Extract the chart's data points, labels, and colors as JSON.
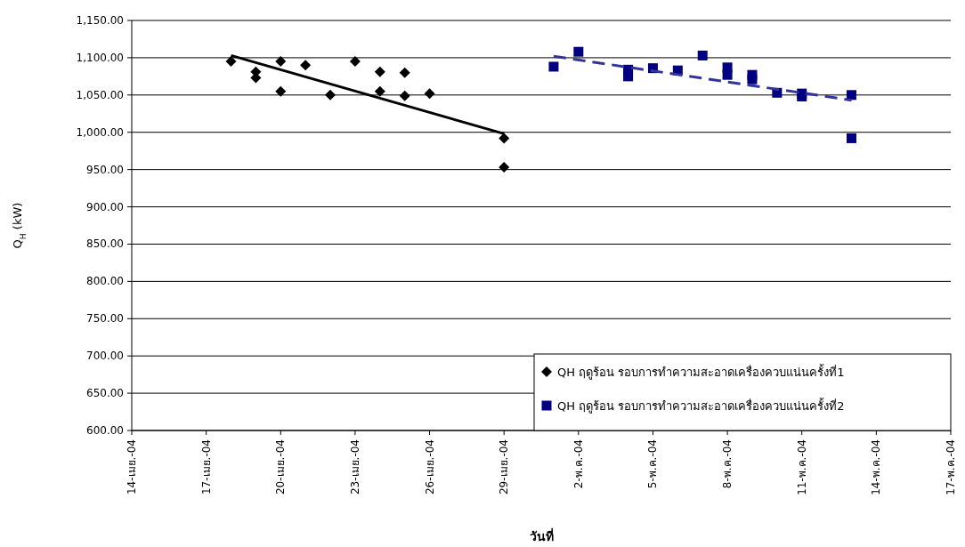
{
  "chart_data": {
    "type": "scatter",
    "xlabel": "วันที่",
    "ylabel": "Q$_{H}$ (kW)",
    "xlim": [
      "--04-14",
      "--05-17"
    ],
    "xticks": [
      {
        "value": "--04-14",
        "label": "14-เมย.-04"
      },
      {
        "value": "--04-17",
        "label": "17-เมย.-04"
      },
      {
        "value": "--04-20",
        "label": "20-เมย.-04"
      },
      {
        "value": "--04-23",
        "label": "23-เมย.-04"
      },
      {
        "value": "--04-26",
        "label": "26-เมย.-04"
      },
      {
        "value": "--04-29",
        "label": "29-เมย.-04"
      },
      {
        "value": "--05-02",
        "label": "2-พ.ค.-04"
      },
      {
        "value": "--05-05",
        "label": "5-พ.ค.-04"
      },
      {
        "value": "--05-08",
        "label": "8-พ.ค.-04"
      },
      {
        "value": "--05-11",
        "label": "11-พ.ค.-04"
      },
      {
        "value": "--05-14",
        "label": "14-พ.ค.-04"
      },
      {
        "value": "--05-17",
        "label": "17-พ.ค.-04"
      }
    ],
    "ylim": [
      600,
      1150
    ],
    "yticks": [
      {
        "value": 600,
        "label": "600.00"
      },
      {
        "value": 650,
        "label": "650.00"
      },
      {
        "value": 700,
        "label": "700.00"
      },
      {
        "value": 750,
        "label": "750.00"
      },
      {
        "value": 800,
        "label": "800.00"
      },
      {
        "value": 850,
        "label": "850.00"
      },
      {
        "value": 900,
        "label": "900.00"
      },
      {
        "value": 950,
        "label": "950.00"
      },
      {
        "value": 1000,
        "label": "1,000.00"
      },
      {
        "value": 1050,
        "label": "1,050.00"
      },
      {
        "value": 1100,
        "label": "1,100.00"
      },
      {
        "value": 1150,
        "label": "1,150.00"
      }
    ],
    "grid": "y",
    "legend": "bottom right",
    "series": [
      {
        "name": "QH ฤดูร้อน รอบการทำความสะอาดเครื่องควบแน่นครั้งที่1",
        "color": "#000000",
        "marker": "diamond",
        "x": [
          "--04-18",
          "--04-19",
          "--04-19",
          "--04-20",
          "--04-20",
          "--04-21",
          "--04-22",
          "--04-23",
          "--04-24",
          "--04-24",
          "--04-25",
          "--04-25",
          "--04-26",
          "--04-29",
          "--04-29"
        ],
        "values": [
          1095,
          1081,
          1073,
          1095,
          1055,
          1090,
          1050,
          1095,
          1081,
          1055,
          1080,
          1049,
          1052,
          992,
          953
        ]
      },
      {
        "name": "QH ฤดูร้อน รอบการทำความสะอาดเครื่องควบแน่นครั้งที่2",
        "color": "#000080",
        "marker": "square",
        "x": [
          "--05-01",
          "--05-02",
          "--05-04",
          "--05-04",
          "--05-05",
          "--05-06",
          "--05-07",
          "--05-08",
          "--05-08",
          "--05-09",
          "--05-09",
          "--05-10",
          "--05-11",
          "--05-11",
          "--05-13",
          "--05-13"
        ],
        "values": [
          1088,
          1108,
          1084,
          1075,
          1086,
          1083,
          1103,
          1087,
          1077,
          1077,
          1071,
          1053,
          1052,
          1048,
          1050,
          992
        ]
      },
      {
        "type": "line",
        "color": "#000000",
        "marker": "none",
        "line_style": "solid",
        "x": [
          "--04-18",
          "--04-29"
        ],
        "values": [
          1103,
          998
        ]
      },
      {
        "type": "line",
        "color": "#333399",
        "marker": "none",
        "line_style": "dashed",
        "x": [
          "--05-01",
          "--05-13"
        ],
        "values": [
          1102,
          1043
        ]
      }
    ]
  }
}
